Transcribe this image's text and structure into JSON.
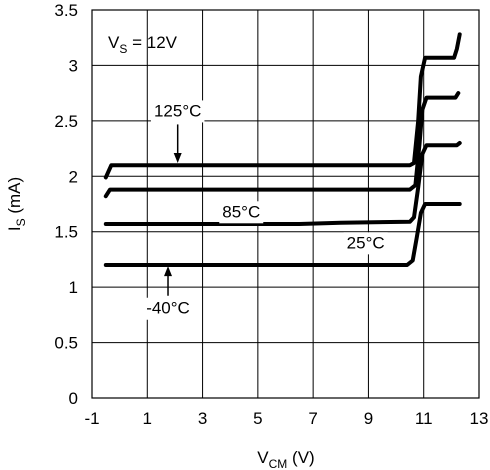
{
  "chart_data": {
    "type": "line",
    "annotation": {
      "prefix": "V",
      "sub": "S",
      "suffix": " = 12V"
    },
    "xlabel": {
      "main": "V",
      "sub": "CM",
      "suffix": " (V)"
    },
    "ylabel": {
      "main": "I",
      "sub": "S",
      "suffix": " (mA)"
    },
    "xlim": [
      -1,
      13
    ],
    "ylim": [
      0,
      3.5
    ],
    "xticks": [
      -1,
      1,
      3,
      5,
      7,
      9,
      11,
      13
    ],
    "xtick_labels": [
      "-1",
      "1",
      "3",
      "5",
      "7",
      "9",
      "11",
      "13"
    ],
    "yticks": [
      0,
      0.5,
      1,
      1.5,
      2,
      2.5,
      3,
      3.5
    ],
    "ytick_labels": [
      "0",
      "0.5",
      "1",
      "1.5",
      "2",
      "2.5",
      "3",
      "3.5"
    ],
    "grid": true,
    "series": [
      {
        "name": "125°C",
        "points": [
          [
            -0.5,
            1.99
          ],
          [
            -0.3,
            2.1
          ],
          [
            10.5,
            2.1
          ],
          [
            10.65,
            2.12
          ],
          [
            10.8,
            2.5
          ],
          [
            10.9,
            2.9
          ],
          [
            11.05,
            3.07
          ],
          [
            12.1,
            3.07
          ],
          [
            12.2,
            3.15
          ],
          [
            12.3,
            3.28
          ]
        ]
      },
      {
        "name": "85°C",
        "points": [
          [
            -0.5,
            1.82
          ],
          [
            -0.35,
            1.88
          ],
          [
            10.5,
            1.88
          ],
          [
            10.7,
            1.92
          ],
          [
            10.85,
            2.3
          ],
          [
            10.95,
            2.6
          ],
          [
            11.1,
            2.71
          ],
          [
            12.15,
            2.71
          ],
          [
            12.25,
            2.75
          ]
        ]
      },
      {
        "name": "25°C",
        "points": [
          [
            -0.5,
            1.57
          ],
          [
            6.5,
            1.57
          ],
          [
            8,
            1.58
          ],
          [
            10.5,
            1.59
          ],
          [
            10.65,
            1.63
          ],
          [
            10.8,
            1.9
          ],
          [
            10.95,
            2.2
          ],
          [
            11.1,
            2.28
          ],
          [
            12.2,
            2.28
          ],
          [
            12.3,
            2.3
          ]
        ]
      },
      {
        "name": "-40°C",
        "points": [
          [
            -0.5,
            1.2
          ],
          [
            10.4,
            1.2
          ],
          [
            10.6,
            1.24
          ],
          [
            10.75,
            1.45
          ],
          [
            10.9,
            1.67
          ],
          [
            11.05,
            1.75
          ],
          [
            12.3,
            1.75
          ]
        ]
      }
    ],
    "labels": [
      {
        "text": "125°C",
        "x": 2.1,
        "y": 2.54,
        "anchor": "middle",
        "arrow_to": [
          2.1,
          2.12
        ]
      },
      {
        "text": "85°C",
        "x": 4.4,
        "y": 1.63,
        "anchor": "middle"
      },
      {
        "text": "25°C",
        "x": 8.9,
        "y": 1.35,
        "anchor": "middle"
      },
      {
        "text": "-40°C",
        "x": 1.75,
        "y": 0.76,
        "anchor": "middle",
        "arrow_to": [
          1.75,
          1.19
        ]
      }
    ]
  }
}
